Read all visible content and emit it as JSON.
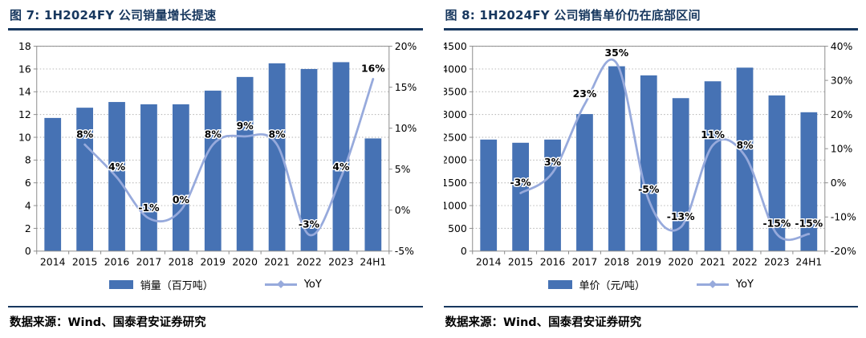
{
  "colors": {
    "bar": "#4672B4",
    "line": "#97AADC",
    "navy": "#17375E",
    "grid": "#B0B0B0",
    "plot_border": "#8C8C8C",
    "text": "#000000"
  },
  "chart_data": [
    {
      "type": "bar",
      "title": "图 7: 1H2024FY 公司销量增长提速",
      "source": "数据来源：Wind、国泰君安证券研究",
      "categories": [
        "2014",
        "2015",
        "2016",
        "2017",
        "2018",
        "2019",
        "2020",
        "2021",
        "2022",
        "2023",
        "24H1"
      ],
      "bar_series": {
        "name": "销量（百万吨）",
        "axis": "left",
        "values": [
          11.7,
          12.6,
          13.1,
          12.9,
          12.9,
          14.1,
          15.3,
          16.5,
          16.0,
          16.6,
          9.9
        ]
      },
      "line_series": {
        "name": "YoY",
        "axis": "right",
        "values": [
          null,
          8,
          4,
          -1,
          0,
          8,
          9,
          8,
          -3,
          4,
          16
        ],
        "labels": [
          "",
          "8%",
          "4%",
          "-1%",
          "0%",
          "8%",
          "9%",
          "8%",
          "-3%",
          "4%",
          "16%"
        ]
      },
      "left_axis": {
        "min": 0,
        "max": 18,
        "step": 2,
        "ticks": [
          "0",
          "2",
          "4",
          "6",
          "8",
          "10",
          "12",
          "14",
          "16",
          "18"
        ]
      },
      "right_axis": {
        "min": -5,
        "max": 20,
        "step": 5,
        "ticks": [
          "-5%",
          "0%",
          "5%",
          "10%",
          "15%",
          "20%"
        ]
      },
      "grid": true,
      "legend_position": "bottom"
    },
    {
      "type": "bar",
      "title": "图 8: 1H2024FY 公司销售单价仍在底部区间",
      "source": "数据来源：Wind、国泰君安证券研究",
      "categories": [
        "2014",
        "2015",
        "2016",
        "2017",
        "2018",
        "2019",
        "2020",
        "2021",
        "2022",
        "2023",
        "24H1"
      ],
      "bar_series": {
        "name": "单价（元/吨）",
        "axis": "left",
        "values": [
          2450,
          2380,
          2450,
          3010,
          4060,
          3860,
          3360,
          3730,
          4030,
          3420,
          3050
        ]
      },
      "line_series": {
        "name": "YoY",
        "axis": "right",
        "values": [
          null,
          -3,
          3,
          23,
          35,
          -5,
          -13,
          11,
          8,
          -15,
          -15
        ],
        "labels": [
          "",
          "-3%",
          "3%",
          "23%",
          "35%",
          "-5%",
          "-13%",
          "11%",
          "8%",
          "-15%",
          "-15%"
        ]
      },
      "left_axis": {
        "min": 0,
        "max": 4500,
        "step": 500,
        "ticks": [
          "0",
          "500",
          "1000",
          "1500",
          "2000",
          "2500",
          "3000",
          "3500",
          "4000",
          "4500"
        ]
      },
      "right_axis": {
        "min": -20,
        "max": 40,
        "step": 10,
        "ticks": [
          "-20%",
          "-10%",
          "0%",
          "10%",
          "20%",
          "30%",
          "40%"
        ]
      },
      "grid": true,
      "legend_position": "bottom"
    }
  ]
}
